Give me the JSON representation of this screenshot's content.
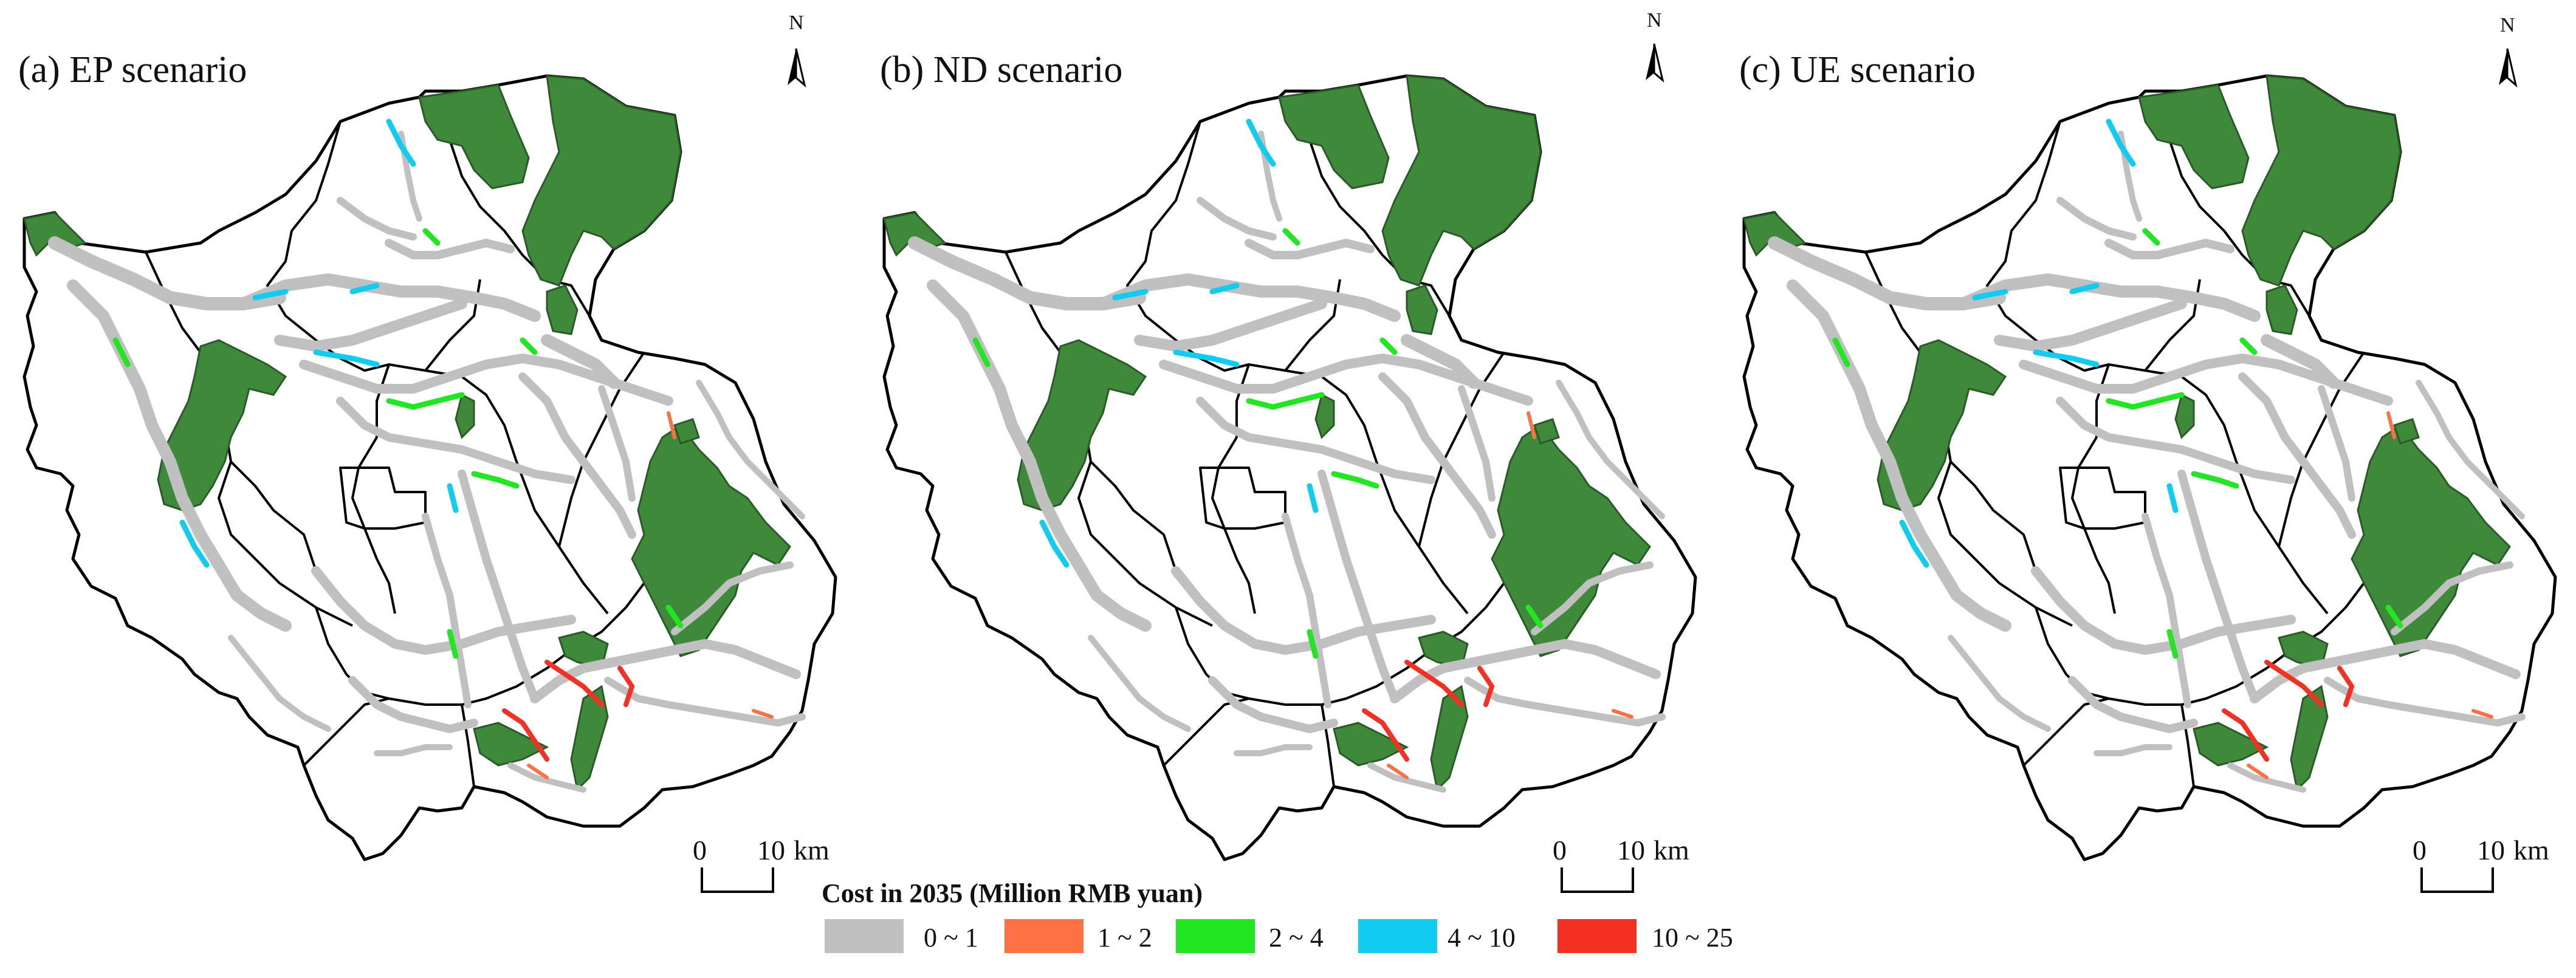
{
  "panels": [
    {
      "title": "(a) EP scenario",
      "north": "N",
      "scale": {
        "zero": "0",
        "ten": "10",
        "unit": "km"
      }
    },
    {
      "title": "(b) ND scenario",
      "north": "N",
      "scale": {
        "zero": "0",
        "ten": "10",
        "unit": "km"
      }
    },
    {
      "title": "(c) UE scenario",
      "north": "N",
      "scale": {
        "zero": "0",
        "ten": "10",
        "unit": "km"
      }
    }
  ],
  "legend": {
    "title": "Cost in 2035  (Million RMB yuan)",
    "items": [
      {
        "label": "0 ~ 1",
        "color": "#c0c0c0"
      },
      {
        "label": "1 ~ 2",
        "color": "#ff7043"
      },
      {
        "label": "2 ~ 4",
        "color": "#22e622"
      },
      {
        "label": "4 ~ 10",
        "color": "#12ccf0"
      },
      {
        "label": "10 ~ 25",
        "color": "#f43022"
      }
    ]
  },
  "colors": {
    "forest": "#3e8a3a",
    "boundary": "#000000"
  }
}
